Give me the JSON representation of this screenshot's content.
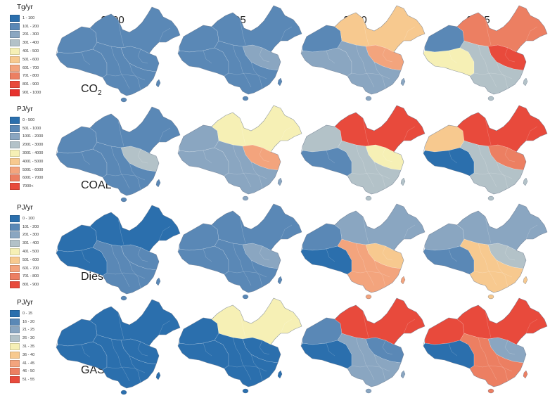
{
  "years": [
    "2000",
    "2005",
    "2010",
    "2015"
  ],
  "rows": [
    {
      "key": "co2",
      "label_main": "CO",
      "label_sub": "2",
      "unit": "Tg/yr",
      "legend": [
        "1 - 100",
        "101 - 200",
        "201 - 300",
        "301 - 400",
        "401 - 500",
        "501 - 600",
        "601 - 700",
        "701 - 800",
        "801 - 900",
        "901 - 1000"
      ],
      "levels": [
        [
          1,
          1,
          1,
          1,
          1
        ],
        [
          1,
          1,
          1,
          2,
          1
        ],
        [
          1,
          2,
          5,
          6,
          2
        ],
        [
          1,
          4,
          7,
          8,
          3
        ]
      ]
    },
    {
      "key": "coal",
      "label_main": "COAL",
      "label_sub": "",
      "unit": "PJ/yr",
      "legend": [
        "0 - 500",
        "501 - 1000",
        "1001 - 2000",
        "2001 - 3000",
        "3001 - 4000",
        "4001 - 5000",
        "5001 - 6000",
        "6001 - 7000",
        "7000<"
      ],
      "levels": [
        [
          1,
          1,
          1,
          3,
          1
        ],
        [
          2,
          2,
          4,
          6,
          2
        ],
        [
          3,
          1,
          8,
          4,
          3
        ],
        [
          5,
          0,
          8,
          7,
          3
        ]
      ]
    },
    {
      "key": "diesel",
      "label_main": "Diesel",
      "label_sub": "",
      "unit": "PJ/yr",
      "legend": [
        "0 - 100",
        "101 - 200",
        "201 - 300",
        "301 - 400",
        "401 - 500",
        "501 - 600",
        "601 - 700",
        "701 - 800",
        "801 - 900"
      ],
      "levels": [
        [
          0,
          0,
          0,
          1,
          1
        ],
        [
          1,
          1,
          1,
          2,
          1
        ],
        [
          1,
          0,
          2,
          5,
          6
        ],
        [
          2,
          1,
          2,
          3,
          5
        ]
      ]
    },
    {
      "key": "gas",
      "label_main": "GAS",
      "label_sub": "",
      "unit": "PJ/yr",
      "legend": [
        "0 - 15",
        "16 - 20",
        "21 - 25",
        "26 - 30",
        "31 - 35",
        "36 - 40",
        "41 - 45",
        "46 - 50",
        "51 - 55"
      ],
      "levels": [
        [
          0,
          0,
          0,
          0,
          0
        ],
        [
          0,
          0,
          4,
          0,
          0
        ],
        [
          1,
          0,
          8,
          1,
          2
        ],
        [
          8,
          0,
          8,
          2,
          7
        ]
      ]
    }
  ],
  "palette": [
    "#2b6fad",
    "#5a88b6",
    "#8aa6c1",
    "#b3c2c8",
    "#f6f0b5",
    "#f7c98f",
    "#f3a47d",
    "#ec7f62",
    "#e84a3c",
    "#e6322e"
  ]
}
